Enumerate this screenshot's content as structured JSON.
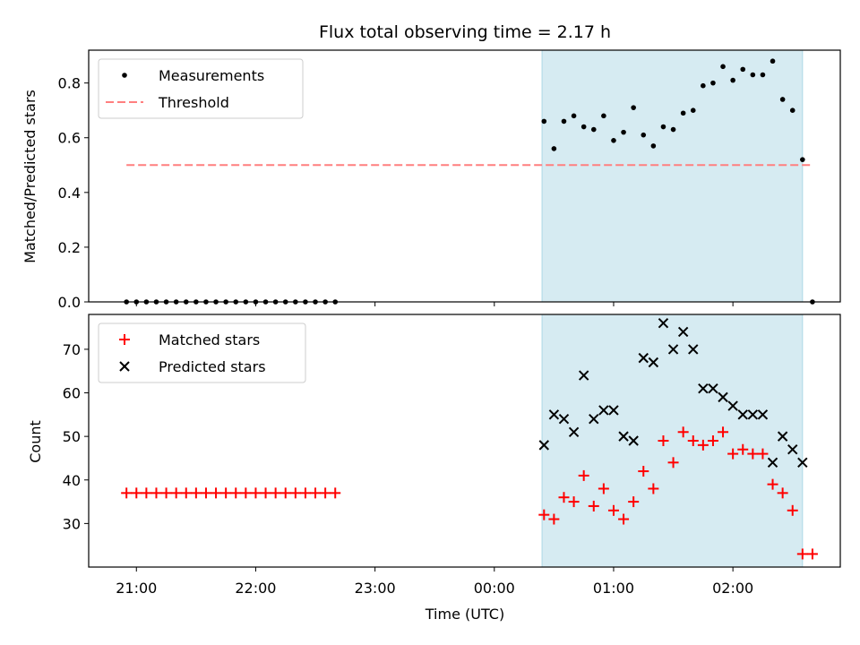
{
  "title": "Flux total observing time = 2.17 h",
  "xlabel": "Time (UTC)",
  "x_ticks": [
    "21:00",
    "22:00",
    "23:00",
    "00:00",
    "01:00",
    "02:00"
  ],
  "colors": {
    "measurements": "#000000",
    "threshold": "#ff7f7f",
    "matched": "#ff0000",
    "predicted": "#000000",
    "observing_span": "#add8e6"
  },
  "chart_data": [
    {
      "type": "scatter",
      "ylabel": "Matched/Predicted stars",
      "ylim": [
        0,
        0.92
      ],
      "yticks": [
        0.0,
        0.2,
        0.4,
        0.6,
        0.8
      ],
      "x_range_hours_from_midnight": [
        "20:36",
        "02:54"
      ],
      "observing_span": [
        "00:24",
        "02:35"
      ],
      "legend_position": "top-left",
      "series": [
        {
          "name": "Measurements",
          "marker": "dot",
          "x": [
            "20:55",
            "21:00",
            "21:05",
            "21:10",
            "21:15",
            "21:20",
            "21:25",
            "21:30",
            "21:35",
            "21:40",
            "21:45",
            "21:50",
            "21:55",
            "22:00",
            "22:05",
            "22:10",
            "22:15",
            "22:20",
            "22:25",
            "22:30",
            "22:35",
            "22:40",
            "00:25",
            "00:30",
            "00:35",
            "00:40",
            "00:45",
            "00:50",
            "00:55",
            "01:00",
            "01:05",
            "01:10",
            "01:15",
            "01:20",
            "01:25",
            "01:30",
            "01:35",
            "01:40",
            "01:45",
            "01:50",
            "01:55",
            "02:00",
            "02:05",
            "02:10",
            "02:15",
            "02:20",
            "02:25",
            "02:30",
            "02:35",
            "02:40"
          ],
          "y": [
            0,
            0,
            0,
            0,
            0,
            0,
            0,
            0,
            0,
            0,
            0,
            0,
            0,
            0,
            0,
            0,
            0,
            0,
            0,
            0,
            0,
            0,
            0.66,
            0.56,
            0.66,
            0.68,
            0.64,
            0.63,
            0.68,
            0.59,
            0.62,
            0.71,
            0.61,
            0.57,
            0.64,
            0.63,
            0.69,
            0.7,
            0.79,
            0.8,
            0.86,
            0.81,
            0.85,
            0.83,
            0.83,
            0.88,
            0.74,
            0.7,
            0.52,
            0
          ]
        },
        {
          "name": "Threshold",
          "marker": "dashed-line",
          "x": [
            "20:55",
            "02:40"
          ],
          "y": [
            0.5,
            0.5
          ]
        }
      ]
    },
    {
      "type": "scatter",
      "ylabel": "Count",
      "ylim": [
        20,
        78
      ],
      "yticks": [
        30,
        40,
        50,
        60,
        70
      ],
      "legend_position": "top-left",
      "series": [
        {
          "name": "Matched stars",
          "marker": "plus",
          "x": [
            "20:55",
            "21:00",
            "21:05",
            "21:10",
            "21:15",
            "21:20",
            "21:25",
            "21:30",
            "21:35",
            "21:40",
            "21:45",
            "21:50",
            "21:55",
            "22:00",
            "22:05",
            "22:10",
            "22:15",
            "22:20",
            "22:25",
            "22:30",
            "22:35",
            "22:40",
            "00:25",
            "00:30",
            "00:35",
            "00:40",
            "00:45",
            "00:50",
            "00:55",
            "01:00",
            "01:05",
            "01:10",
            "01:15",
            "01:20",
            "01:25",
            "01:30",
            "01:35",
            "01:40",
            "01:45",
            "01:50",
            "01:55",
            "02:00",
            "02:05",
            "02:10",
            "02:15",
            "02:20",
            "02:25",
            "02:30",
            "02:35",
            "02:40"
          ],
          "y": [
            37,
            37,
            37,
            37,
            37,
            37,
            37,
            37,
            37,
            37,
            37,
            37,
            37,
            37,
            37,
            37,
            37,
            37,
            37,
            37,
            37,
            37,
            32,
            31,
            36,
            35,
            41,
            34,
            38,
            33,
            31,
            35,
            42,
            38,
            49,
            44,
            51,
            49,
            48,
            49,
            51,
            46,
            47,
            46,
            46,
            39,
            37,
            33,
            23,
            23
          ]
        },
        {
          "name": "Predicted stars",
          "marker": "x",
          "x": [
            "00:25",
            "00:30",
            "00:35",
            "00:40",
            "00:45",
            "00:50",
            "00:55",
            "01:00",
            "01:05",
            "01:10",
            "01:15",
            "01:20",
            "01:25",
            "01:30",
            "01:35",
            "01:40",
            "01:45",
            "01:50",
            "01:55",
            "02:00",
            "02:05",
            "02:10",
            "02:15",
            "02:20",
            "02:25",
            "02:30",
            "02:35"
          ],
          "y": [
            48,
            55,
            54,
            51,
            64,
            54,
            56,
            56,
            50,
            49,
            68,
            67,
            76,
            70,
            74,
            70,
            61,
            61,
            59,
            57,
            55,
            55,
            55,
            44,
            50,
            47,
            44
          ]
        }
      ]
    }
  ]
}
